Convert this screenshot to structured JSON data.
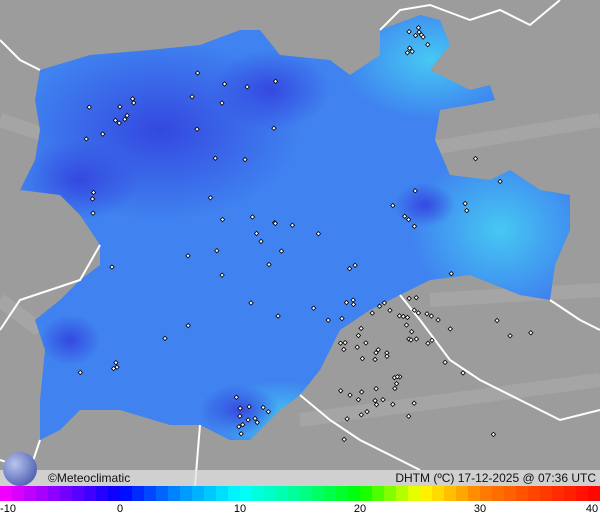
{
  "map": {
    "credit": "©Meteoclimatic",
    "variable_label": "DHTM (ºC)",
    "timestamp": "17-12-2025 @ 07:36 UTC",
    "logo_text": "m",
    "colors": {
      "background": "#9c9c9c",
      "region_main": "#3f7ff0",
      "region_dark": "#2e4fe0",
      "region_light": "#3fd6f0",
      "border": "#ffffff"
    }
  },
  "colorbar": {
    "min": -10,
    "max": 40,
    "tick_labels": [
      "-10",
      "0",
      "10",
      "20",
      "30",
      "40"
    ],
    "stops": [
      [
        "-10",
        "#ff00ff"
      ],
      [
        "-5",
        "#8000ff"
      ],
      [
        "0",
        "#0000ff"
      ],
      [
        "5",
        "#0090ff"
      ],
      [
        "10",
        "#00ffff"
      ],
      [
        "15",
        "#00ff90"
      ],
      [
        "20",
        "#00ff00"
      ],
      [
        "25",
        "#ffff00"
      ],
      [
        "30",
        "#ff8000"
      ],
      [
        "40",
        "#ff0000"
      ]
    ]
  }
}
